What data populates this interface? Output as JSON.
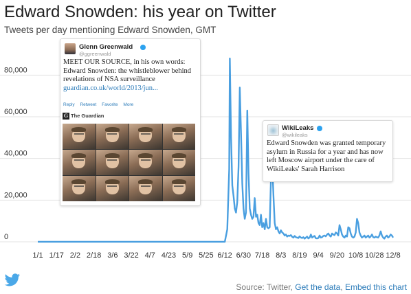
{
  "title": "Edward Snowden: his year on Twitter",
  "subtitle": "Tweets per day mentioning Edward Snowden, GMT",
  "colors": {
    "line": "#4a9fe0",
    "link": "#2b7bb9",
    "verified": "#2ca2ef"
  },
  "chart_data": {
    "type": "line",
    "title": "Edward Snowden: his year on Twitter",
    "subtitle": "Tweets per day mentioning Edward Snowden, GMT",
    "xlabel": "",
    "ylabel": "",
    "ylim": [
      0,
      90000
    ],
    "y_ticks": [
      0,
      20000,
      40000,
      60000,
      80000
    ],
    "y_tick_labels": [
      "0",
      "20,000",
      "40,000",
      "60,000",
      "80,000"
    ],
    "x_tick_labels": [
      "1/1",
      "1/17",
      "2/2",
      "2/18",
      "3/6",
      "3/22",
      "4/7",
      "4/23",
      "5/9",
      "5/25",
      "6/12",
      "6/30",
      "7/18",
      "8/3",
      "8/19",
      "9/4",
      "9/20",
      "10/8",
      "10/28",
      "12/8"
    ],
    "grid": "horizontal",
    "series": [
      {
        "values": [
          [
            0,
            0
          ],
          [
            100,
            0
          ],
          [
            200,
            0
          ],
          [
            280,
            0
          ],
          [
            300,
            0
          ],
          [
            304,
            6000
          ],
          [
            307,
            35000
          ],
          [
            308,
            88000
          ],
          [
            310,
            50000
          ],
          [
            312,
            27000
          ],
          [
            314,
            22000
          ],
          [
            316,
            16000
          ],
          [
            318,
            14000
          ],
          [
            320,
            19000
          ],
          [
            322,
            36000
          ],
          [
            324,
            74000
          ],
          [
            326,
            52000
          ],
          [
            328,
            28000
          ],
          [
            330,
            16000
          ],
          [
            332,
            11000
          ],
          [
            334,
            14000
          ],
          [
            336,
            63000
          ],
          [
            338,
            33000
          ],
          [
            340,
            16000
          ],
          [
            342,
            13000
          ],
          [
            344,
            11000
          ],
          [
            346,
            12000
          ],
          [
            348,
            21000
          ],
          [
            350,
            12000
          ],
          [
            352,
            13000
          ],
          [
            354,
            9000
          ],
          [
            356,
            8000
          ],
          [
            358,
            13000
          ],
          [
            360,
            7000
          ],
          [
            362,
            9000
          ],
          [
            364,
            6000
          ],
          [
            366,
            11000
          ],
          [
            368,
            7000
          ],
          [
            370,
            6500
          ],
          [
            372,
            7000
          ],
          [
            374,
            30000
          ],
          [
            376,
            38000
          ],
          [
            378,
            22000
          ],
          [
            380,
            9000
          ],
          [
            382,
            6000
          ],
          [
            384,
            7000
          ],
          [
            386,
            5000
          ],
          [
            388,
            4000
          ],
          [
            390,
            5500
          ],
          [
            392,
            4500
          ],
          [
            394,
            4000
          ],
          [
            396,
            3000
          ],
          [
            398,
            3500
          ],
          [
            400,
            2500
          ],
          [
            402,
            3000
          ],
          [
            404,
            2800
          ],
          [
            406,
            3200
          ],
          [
            408,
            2400
          ],
          [
            410,
            2000
          ],
          [
            412,
            2800
          ],
          [
            414,
            2200
          ],
          [
            416,
            2000
          ],
          [
            418,
            1800
          ],
          [
            420,
            2600
          ],
          [
            422,
            2000
          ],
          [
            424,
            1800
          ],
          [
            426,
            2200
          ],
          [
            428,
            1500
          ],
          [
            430,
            2000
          ],
          [
            432,
            2500
          ],
          [
            434,
            1600
          ],
          [
            436,
            2000
          ],
          [
            438,
            3500
          ],
          [
            440,
            2000
          ],
          [
            442,
            2500
          ],
          [
            444,
            2800
          ],
          [
            446,
            1700
          ],
          [
            448,
            1600
          ],
          [
            450,
            1800
          ],
          [
            452,
            3000
          ],
          [
            454,
            2000
          ],
          [
            456,
            2200
          ],
          [
            458,
            2800
          ],
          [
            460,
            3000
          ],
          [
            462,
            2600
          ],
          [
            464,
            3500
          ],
          [
            466,
            4000
          ],
          [
            468,
            3000
          ],
          [
            470,
            2500
          ],
          [
            472,
            4000
          ],
          [
            474,
            3500
          ],
          [
            476,
            3200
          ],
          [
            478,
            4500
          ],
          [
            480,
            4000
          ],
          [
            482,
            3000
          ],
          [
            484,
            8000
          ],
          [
            486,
            6000
          ],
          [
            488,
            3500
          ],
          [
            490,
            2500
          ],
          [
            492,
            2000
          ],
          [
            494,
            3000
          ],
          [
            496,
            2500
          ],
          [
            498,
            7000
          ],
          [
            500,
            6500
          ],
          [
            502,
            4000
          ],
          [
            504,
            2500
          ],
          [
            506,
            2000
          ],
          [
            508,
            2500
          ],
          [
            510,
            4500
          ],
          [
            512,
            11000
          ],
          [
            514,
            9000
          ],
          [
            516,
            4500
          ],
          [
            518,
            3000
          ],
          [
            520,
            2000
          ],
          [
            522,
            2500
          ],
          [
            524,
            3000
          ],
          [
            526,
            2000
          ],
          [
            528,
            2500
          ],
          [
            530,
            3000
          ],
          [
            532,
            2000
          ],
          [
            534,
            2500
          ],
          [
            536,
            3500
          ],
          [
            538,
            2200
          ],
          [
            540,
            2000
          ],
          [
            542,
            2500
          ],
          [
            544,
            2200
          ],
          [
            546,
            2000
          ],
          [
            548,
            3000
          ],
          [
            550,
            5000
          ],
          [
            552,
            3000
          ],
          [
            554,
            2000
          ],
          [
            556,
            1500
          ],
          [
            558,
            2500
          ],
          [
            560,
            3000
          ],
          [
            562,
            2000
          ],
          [
            564,
            2500
          ],
          [
            566,
            3500
          ],
          [
            568,
            3000
          ],
          [
            570,
            2000
          ]
        ]
      }
    ]
  },
  "tweet1": {
    "name": "Glenn Greenwald",
    "handle": "@ggreenwald",
    "text": "MEET OUR SOURCE, in his own words: Edward Snowden: the whistleblower behind revelations of NSA surveillance",
    "link": "guardian.co.uk/world/2013/jun...",
    "actions": [
      "Reply",
      "Retweet",
      "Favorite",
      "More"
    ],
    "source": "The Guardian",
    "source_logo": "G"
  },
  "tweet2": {
    "name": "WikiLeaks",
    "handle": "@wikileaks",
    "text": "Edward Snowden was granted temporary asylum in Russia for a year and has now left Moscow airport under the care of WikiLeaks' Sarah Harrison"
  },
  "footer": {
    "source_prefix": "Source: Twitter, ",
    "get_data": "Get the data",
    "separator": ", ",
    "embed": "Embed this chart"
  },
  "icons": {
    "logo": "twitter-bird-icon",
    "verified": "verified-badge-icon"
  }
}
